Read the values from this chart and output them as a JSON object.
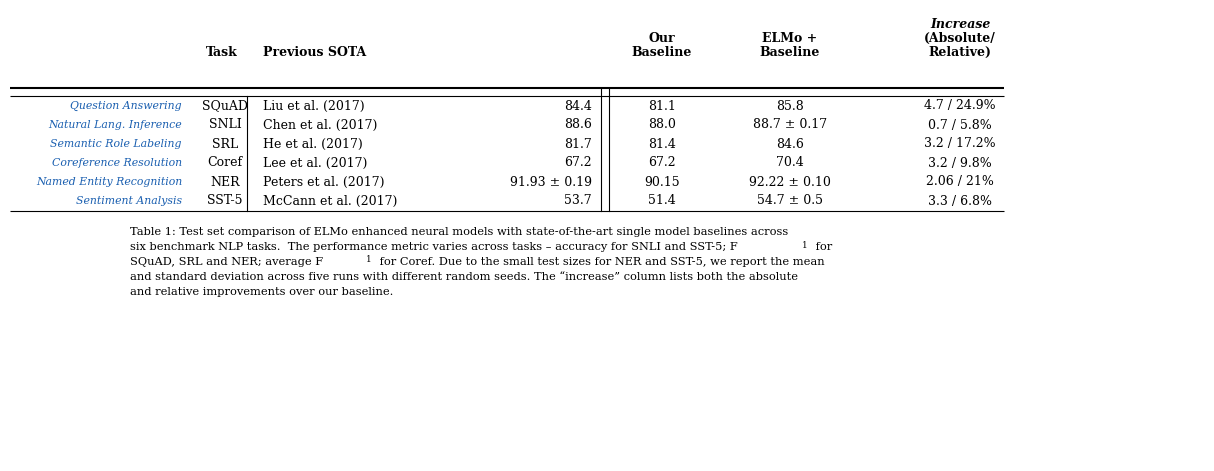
{
  "rows": [
    {
      "task_label": "Question Answering",
      "task": "SQuAD",
      "reference": "Liu et al. (2017)",
      "sota_score": "84.4",
      "our_baseline": "81.1",
      "elmo_baseline": "85.8",
      "increase": "4.7 / 24.9%"
    },
    {
      "task_label": "Natural Lang. Inference",
      "task": "SNLI",
      "reference": "Chen et al. (2017)",
      "sota_score": "88.6",
      "our_baseline": "88.0",
      "elmo_baseline": "88.7 ± 0.17",
      "increase": "0.7 / 5.8%"
    },
    {
      "task_label": "Semantic Role Labeling",
      "task": "SRL",
      "reference": "He et al. (2017)",
      "sota_score": "81.7",
      "our_baseline": "81.4",
      "elmo_baseline": "84.6",
      "increase": "3.2 / 17.2%"
    },
    {
      "task_label": "Coreference Resolution",
      "task": "Coref",
      "reference": "Lee et al. (2017)",
      "sota_score": "67.2",
      "our_baseline": "67.2",
      "elmo_baseline": "70.4",
      "increase": "3.2 / 9.8%"
    },
    {
      "task_label": "Named Entity Recognition",
      "task": "NER",
      "reference": "Peters et al. (2017)",
      "sota_score": "91.93 ± 0.19",
      "our_baseline": "90.15",
      "elmo_baseline": "92.22 ± 0.10",
      "increase": "2.06 / 21%"
    },
    {
      "task_label": "Sentiment Analysis",
      "task": "SST-5",
      "reference": "McCann et al. (2017)",
      "sota_score": "53.7",
      "our_baseline": "51.4",
      "elmo_baseline": "54.7 ± 0.5",
      "increase": "3.3 / 6.8%"
    }
  ],
  "task_label_color": "#1a5fb0",
  "header_color": "#000000",
  "body_color": "#000000",
  "bg_color": "#ffffff",
  "caption_line1": "Table 1: Test set comparison of ELMo enhanced neural models with state-of-the-art single model baselines across",
  "caption_line2": "six benchmark NLP tasks.  The performance metric varies across tasks – accuracy for SNLI and SST-5; F",
  "caption_line2b": " for",
  "caption_line3": "SQuAD, SRL and NER; average F",
  "caption_line3b": " for Coref. Due to the small test sizes for NER and SST-5, we report the mean",
  "caption_line4": "and standard deviation across five runs with different random seeds. The “increase” column lists both the absolute",
  "caption_line5": "and relative improvements over our baseline."
}
